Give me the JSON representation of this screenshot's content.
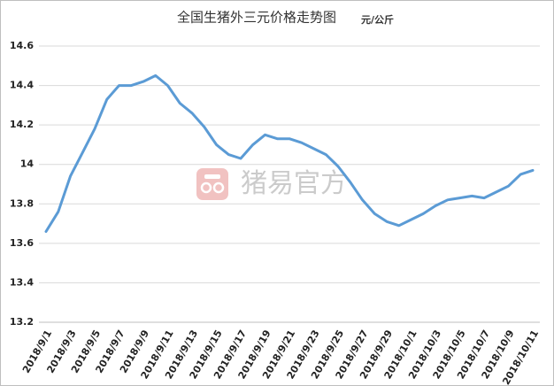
{
  "chart_data": {
    "type": "line",
    "title": "全国生猪外三元价格走势图",
    "unit": "元/公斤",
    "watermark": "猪易官方",
    "categories": [
      "2018/9/1",
      null,
      "2018/9/3",
      null,
      "2018/9/5",
      null,
      "2018/9/7",
      null,
      "2018/9/9",
      null,
      "2018/9/11",
      null,
      "2018/9/13",
      null,
      "2018/9/15",
      null,
      "2018/9/17",
      null,
      "2018/9/19",
      null,
      "2018/9/21",
      null,
      "2018/9/23",
      null,
      "2018/9/25",
      null,
      "2018/9/27",
      null,
      "2018/9/29",
      null,
      "2018/10/1",
      null,
      "2018/10/3",
      null,
      "2018/10/5",
      null,
      "2018/10/7",
      null,
      "2018/10/9",
      null,
      "2018/10/11"
    ],
    "values": [
      13.66,
      13.76,
      13.94,
      14.06,
      14.18,
      14.33,
      14.4,
      14.4,
      14.42,
      14.45,
      14.4,
      14.31,
      14.26,
      14.19,
      14.1,
      14.05,
      14.03,
      14.1,
      14.15,
      14.13,
      14.13,
      14.11,
      14.08,
      14.05,
      13.99,
      13.91,
      13.82,
      13.75,
      13.71,
      13.69,
      13.72,
      13.75,
      13.79,
      13.82,
      13.83,
      13.84,
      13.83,
      13.86,
      13.89,
      13.95,
      13.97
    ],
    "color": "#5b9bd5",
    "ylim": [
      13.2,
      14.6
    ],
    "yticks": [
      13.2,
      13.4,
      13.6,
      13.8,
      14,
      14.2,
      14.4,
      14.6
    ],
    "grid": true
  }
}
